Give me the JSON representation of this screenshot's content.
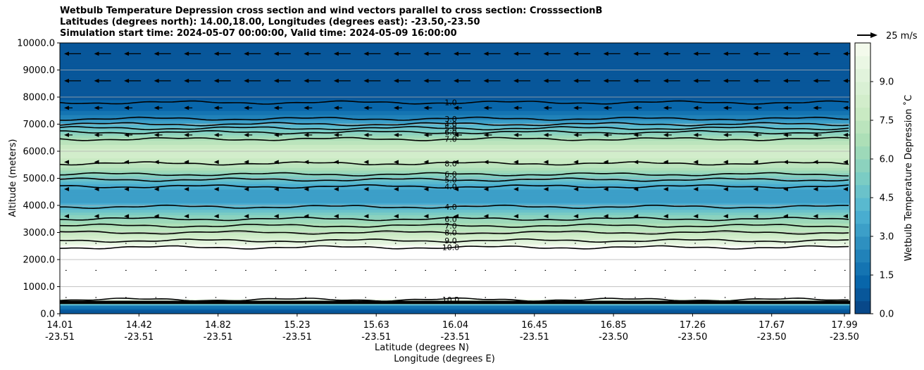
{
  "title": {
    "line1": "Wetbulb Temperature Depression cross section and wind vectors parallel to cross section: CrosssectionB",
    "line2": "Latitudes (degrees north): 14.00,18.00, Longitudes (degrees east): -23.50,-23.50",
    "line3": "Simulation start time: 2024-05-07 00:00:00, Valid time: 2024-05-09 16:00:00"
  },
  "chart_data": {
    "type": "heatmap",
    "title": "Wetbulb Temperature Depression cross section and wind vectors parallel to cross section: CrosssectionB",
    "ylabel": "Altitude (meters)",
    "xlabel_lat": "Latitude (degrees N)",
    "xlabel_lon": "Longitude (degrees E)",
    "ylim": [
      0,
      10000
    ],
    "yticks": [
      "0.0",
      "1000.0",
      "2000.0",
      "3000.0",
      "4000.0",
      "5000.0",
      "6000.0",
      "7000.0",
      "8000.0",
      "9000.0",
      "10000.0"
    ],
    "xticks": [
      {
        "lat": "14.01",
        "lon": "-23.51"
      },
      {
        "lat": "14.42",
        "lon": "-23.51"
      },
      {
        "lat": "14.82",
        "lon": "-23.51"
      },
      {
        "lat": "15.23",
        "lon": "-23.51"
      },
      {
        "lat": "15.63",
        "lon": "-23.51"
      },
      {
        "lat": "16.04",
        "lon": "-23.51"
      },
      {
        "lat": "16.45",
        "lon": "-23.51"
      },
      {
        "lat": "16.85",
        "lon": "-23.50"
      },
      {
        "lat": "17.26",
        "lon": "-23.50"
      },
      {
        "lat": "17.67",
        "lon": "-23.50"
      },
      {
        "lat": "17.99",
        "lon": "-23.50"
      }
    ],
    "colorbar": {
      "label": "Wetbulb Temperature Depression ˚C",
      "ticks": [
        "0.0",
        "1.5",
        "3.0",
        "4.5",
        "6.0",
        "7.5",
        "9.0"
      ],
      "vmin": 0,
      "vmax": 10.5,
      "levels": 21
    },
    "wind_key": {
      "label": "25 m/s",
      "speed": 25
    },
    "profile": [
      {
        "alt": 0,
        "val": 0.5
      },
      {
        "alt": 150,
        "val": 1.0
      },
      {
        "alt": 300,
        "val": 2.0
      },
      {
        "alt": 450,
        "val": 8.0
      },
      {
        "alt": 600,
        "val": 11.5
      },
      {
        "alt": 2400,
        "val": 11.5
      },
      {
        "alt": 2600,
        "val": 9.5
      },
      {
        "alt": 2900,
        "val": 8.0
      },
      {
        "alt": 3200,
        "val": 7.0
      },
      {
        "alt": 3500,
        "val": 6.0
      },
      {
        "alt": 3800,
        "val": 4.8
      },
      {
        "alt": 4100,
        "val": 3.5
      },
      {
        "alt": 4400,
        "val": 3.0
      },
      {
        "alt": 4750,
        "val": 3.8
      },
      {
        "alt": 5000,
        "val": 5.0
      },
      {
        "alt": 5300,
        "val": 6.5
      },
      {
        "alt": 5600,
        "val": 7.8
      },
      {
        "alt": 6000,
        "val": 8.3
      },
      {
        "alt": 6300,
        "val": 7.4
      },
      {
        "alt": 6600,
        "val": 6.0
      },
      {
        "alt": 6900,
        "val": 4.5
      },
      {
        "alt": 7200,
        "val": 2.5
      },
      {
        "alt": 7500,
        "val": 1.5
      },
      {
        "alt": 7900,
        "val": 1.0
      },
      {
        "alt": 8500,
        "val": 0.7
      },
      {
        "alt": 9000,
        "val": 0.9
      },
      {
        "alt": 9500,
        "val": 0.8
      },
      {
        "alt": 10000,
        "val": 0.6
      }
    ],
    "contours": [
      {
        "label": "1.0",
        "alt": 7800
      },
      {
        "label": "3.0",
        "alt": 7200
      },
      {
        "label": "4.0",
        "alt": 7000
      },
      {
        "label": "5.0",
        "alt": 6850
      },
      {
        "label": "6.0",
        "alt": 6700
      },
      {
        "label": "7.0",
        "alt": 6450
      },
      {
        "label": "8.0",
        "alt": 5550
      },
      {
        "label": "6.0",
        "alt": 5150
      },
      {
        "label": "5.0",
        "alt": 4950
      },
      {
        "label": "4.0",
        "alt": 4700
      },
      {
        "label": "4.0",
        "alt": 3950
      },
      {
        "label": "6.0",
        "alt": 3500
      },
      {
        "label": "7.0",
        "alt": 3250
      },
      {
        "label": "8.0",
        "alt": 3000
      },
      {
        "label": "9.0",
        "alt": 2700
      },
      {
        "label": "10.0",
        "alt": 2450
      },
      {
        "label": "10.0",
        "alt": 520
      }
    ]
  }
}
